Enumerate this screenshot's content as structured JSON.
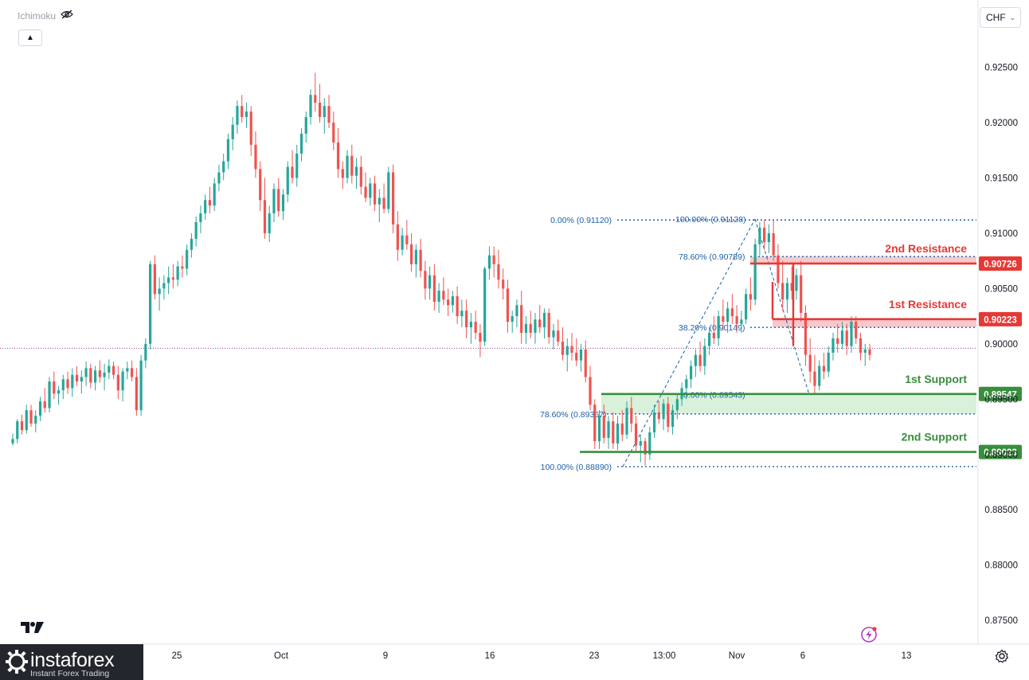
{
  "indicator": {
    "name": "Ichimoku",
    "icon": "eye-crossed-icon"
  },
  "toolbar": {
    "collapse_icon": "chevron-up-icon"
  },
  "currency": {
    "label": "CHF",
    "icon": "chevron-down-icon"
  },
  "brand": {
    "name": "instaforex",
    "tagline": "Instant Forex Trading"
  },
  "chart_data": {
    "type": "candlestick",
    "symbol_currency": "CHF",
    "ylim": [
      0.8735,
      0.9295
    ],
    "y_ticks": [
      "0.92500",
      "0.92000",
      "0.91500",
      "0.91000",
      "0.90500",
      "0.90000",
      "0.89500",
      "0.89000",
      "0.88500",
      "0.88000",
      "0.87500"
    ],
    "x_ticks": [
      "25",
      "Oct",
      "9",
      "16",
      "23",
      "13:00",
      "Nov",
      "6",
      "13"
    ],
    "current_price": 0.8996,
    "colors": {
      "up": "#26a69a",
      "down": "#ef5350",
      "resistance": "#e53935",
      "support": "#388e3c",
      "fib": "#1e5fa8",
      "zone_red": "#f7c9cb",
      "zone_green": "#d9f0da"
    },
    "levels": [
      {
        "name": "2nd Resistance",
        "value": 0.90726,
        "label": "0.90726",
        "kind": "resistance"
      },
      {
        "name": "1st Resistance",
        "value": 0.90223,
        "label": "0.90223",
        "kind": "resistance"
      },
      {
        "name": "1st Support",
        "value": 0.89547,
        "label": "0.89547",
        "kind": "support"
      },
      {
        "name": "2nd Support",
        "value": 0.89023,
        "label": "0.89023",
        "kind": "support"
      }
    ],
    "fib_labels": [
      {
        "text": "0.00% (0.91120)",
        "value": 0.9112
      },
      {
        "text": "100.00% (0.91128)",
        "value": 0.91128
      },
      {
        "text": "78.60% (0.90789)",
        "value": 0.90789
      },
      {
        "text": "38.20% (0.90149)",
        "value": 0.90149
      },
      {
        "text": "0.00% (0.89543)",
        "value": 0.89543
      },
      {
        "text": "78.60% (0.89367)",
        "value": 0.89367
      },
      {
        "text": "100.00% (0.88890)",
        "value": 0.8889
      }
    ],
    "candles": [
      [
        0.891,
        0.8919,
        0.8908,
        0.8914
      ],
      [
        0.8914,
        0.8932,
        0.891,
        0.893
      ],
      [
        0.893,
        0.8936,
        0.8918,
        0.8922
      ],
      [
        0.8922,
        0.8945,
        0.8919,
        0.894
      ],
      [
        0.894,
        0.8945,
        0.8925,
        0.8928
      ],
      [
        0.8928,
        0.894,
        0.892,
        0.8935
      ],
      [
        0.8935,
        0.8952,
        0.893,
        0.8948
      ],
      [
        0.8948,
        0.896,
        0.8938,
        0.8942
      ],
      [
        0.8942,
        0.897,
        0.8938,
        0.8966
      ],
      [
        0.8966,
        0.8975,
        0.895,
        0.8955
      ],
      [
        0.8955,
        0.8962,
        0.8945,
        0.8958
      ],
      [
        0.8958,
        0.8972,
        0.895,
        0.8968
      ],
      [
        0.8968,
        0.8975,
        0.8955,
        0.896
      ],
      [
        0.896,
        0.8978,
        0.8952,
        0.8972
      ],
      [
        0.8972,
        0.898,
        0.8962,
        0.8966
      ],
      [
        0.8966,
        0.8976,
        0.8955,
        0.897
      ],
      [
        0.897,
        0.8984,
        0.8962,
        0.8978
      ],
      [
        0.8978,
        0.8982,
        0.896,
        0.8965
      ],
      [
        0.8965,
        0.898,
        0.8958,
        0.8976
      ],
      [
        0.8976,
        0.8985,
        0.8965,
        0.897
      ],
      [
        0.897,
        0.8982,
        0.8958,
        0.8974
      ],
      [
        0.8974,
        0.8986,
        0.8968,
        0.898
      ],
      [
        0.898,
        0.8984,
        0.8968,
        0.8972
      ],
      [
        0.8972,
        0.898,
        0.895,
        0.8958
      ],
      [
        0.8958,
        0.8978,
        0.8948,
        0.8975
      ],
      [
        0.8975,
        0.8984,
        0.8968,
        0.8978
      ],
      [
        0.8978,
        0.8985,
        0.8966,
        0.897
      ],
      [
        0.897,
        0.8978,
        0.8935,
        0.894
      ],
      [
        0.894,
        0.899,
        0.8935,
        0.8985
      ],
      [
        0.8985,
        0.9005,
        0.8978,
        0.9
      ],
      [
        0.9,
        0.9075,
        0.8995,
        0.9072
      ],
      [
        0.9072,
        0.908,
        0.904,
        0.9045
      ],
      [
        0.9045,
        0.906,
        0.903,
        0.905
      ],
      [
        0.905,
        0.9062,
        0.904,
        0.9055
      ],
      [
        0.9055,
        0.907,
        0.9045,
        0.906
      ],
      [
        0.906,
        0.9072,
        0.905,
        0.9058
      ],
      [
        0.9058,
        0.9075,
        0.9052,
        0.907
      ],
      [
        0.907,
        0.908,
        0.906,
        0.9068
      ],
      [
        0.9068,
        0.909,
        0.9062,
        0.9085
      ],
      [
        0.9085,
        0.91,
        0.9078,
        0.9095
      ],
      [
        0.9095,
        0.9115,
        0.9088,
        0.911
      ],
      [
        0.911,
        0.9125,
        0.91,
        0.9118
      ],
      [
        0.9118,
        0.9135,
        0.9112,
        0.913
      ],
      [
        0.913,
        0.9142,
        0.9118,
        0.9125
      ],
      [
        0.9125,
        0.915,
        0.912,
        0.9145
      ],
      [
        0.9145,
        0.9162,
        0.9138,
        0.9155
      ],
      [
        0.9155,
        0.9172,
        0.9148,
        0.9165
      ],
      [
        0.9165,
        0.919,
        0.9158,
        0.9185
      ],
      [
        0.9185,
        0.9205,
        0.9175,
        0.9198
      ],
      [
        0.9198,
        0.922,
        0.919,
        0.9215
      ],
      [
        0.9215,
        0.9225,
        0.92,
        0.9205
      ],
      [
        0.9205,
        0.9218,
        0.9195,
        0.921
      ],
      [
        0.921,
        0.9215,
        0.917,
        0.918
      ],
      [
        0.918,
        0.9192,
        0.915,
        0.9158
      ],
      [
        0.9158,
        0.9165,
        0.912,
        0.913
      ],
      [
        0.913,
        0.915,
        0.9095,
        0.91
      ],
      [
        0.91,
        0.9125,
        0.9092,
        0.9118
      ],
      [
        0.9118,
        0.9145,
        0.911,
        0.914
      ],
      [
        0.914,
        0.915,
        0.9115,
        0.912
      ],
      [
        0.912,
        0.914,
        0.9112,
        0.9135
      ],
      [
        0.9135,
        0.9165,
        0.9128,
        0.916
      ],
      [
        0.916,
        0.9175,
        0.9145,
        0.915
      ],
      [
        0.915,
        0.918,
        0.9142,
        0.9172
      ],
      [
        0.9172,
        0.9195,
        0.9165,
        0.919
      ],
      [
        0.919,
        0.921,
        0.9182,
        0.9205
      ],
      [
        0.9205,
        0.923,
        0.9198,
        0.9225
      ],
      [
        0.9225,
        0.9245,
        0.921,
        0.9218
      ],
      [
        0.9218,
        0.9235,
        0.92,
        0.9205
      ],
      [
        0.9205,
        0.9222,
        0.919,
        0.9215
      ],
      [
        0.9215,
        0.9225,
        0.9195,
        0.92
      ],
      [
        0.92,
        0.921,
        0.9175,
        0.9182
      ],
      [
        0.9182,
        0.9195,
        0.915,
        0.9158
      ],
      [
        0.9158,
        0.9165,
        0.914,
        0.915
      ],
      [
        0.915,
        0.9175,
        0.9145,
        0.917
      ],
      [
        0.917,
        0.918,
        0.9145,
        0.9152
      ],
      [
        0.9152,
        0.9168,
        0.914,
        0.916
      ],
      [
        0.916,
        0.917,
        0.9135,
        0.9142
      ],
      [
        0.9142,
        0.9155,
        0.9128,
        0.9132
      ],
      [
        0.9132,
        0.915,
        0.9125,
        0.9145
      ],
      [
        0.9145,
        0.9152,
        0.912,
        0.9126
      ],
      [
        0.9126,
        0.914,
        0.911,
        0.9132
      ],
      [
        0.9132,
        0.9145,
        0.9118,
        0.9122
      ],
      [
        0.9122,
        0.916,
        0.9118,
        0.9155
      ],
      [
        0.9155,
        0.9162,
        0.91,
        0.9108
      ],
      [
        0.9108,
        0.912,
        0.9075,
        0.9085
      ],
      [
        0.9085,
        0.9105,
        0.908,
        0.9098
      ],
      [
        0.9098,
        0.9112,
        0.9085,
        0.909
      ],
      [
        0.909,
        0.91,
        0.9065,
        0.9072
      ],
      [
        0.9072,
        0.909,
        0.906,
        0.9085
      ],
      [
        0.9085,
        0.9095,
        0.906,
        0.9066
      ],
      [
        0.9066,
        0.9075,
        0.904,
        0.905
      ],
      [
        0.905,
        0.907,
        0.904,
        0.9062
      ],
      [
        0.9062,
        0.9072,
        0.903,
        0.9038
      ],
      [
        0.9038,
        0.9055,
        0.9028,
        0.9048
      ],
      [
        0.9048,
        0.906,
        0.9035,
        0.904
      ],
      [
        0.904,
        0.905,
        0.9025,
        0.9035
      ],
      [
        0.9035,
        0.9048,
        0.9028,
        0.9043
      ],
      [
        0.9043,
        0.9052,
        0.9018,
        0.9025
      ],
      [
        0.9025,
        0.904,
        0.9015,
        0.903
      ],
      [
        0.903,
        0.904,
        0.9005,
        0.9015
      ],
      [
        0.9015,
        0.9028,
        0.9,
        0.902
      ],
      [
        0.902,
        0.903,
        0.9004,
        0.901
      ],
      [
        0.901,
        0.9018,
        0.8988,
        0.9002
      ],
      [
        0.9002,
        0.907,
        0.8998,
        0.9068
      ],
      [
        0.9068,
        0.9088,
        0.9058,
        0.908
      ],
      [
        0.908,
        0.9088,
        0.906,
        0.9072
      ],
      [
        0.9072,
        0.9085,
        0.905,
        0.9058
      ],
      [
        0.9058,
        0.9068,
        0.904,
        0.905
      ],
      [
        0.905,
        0.9058,
        0.901,
        0.902
      ],
      [
        0.902,
        0.903,
        0.901,
        0.9025
      ],
      [
        0.9025,
        0.904,
        0.9015,
        0.9035
      ],
      [
        0.9035,
        0.9048,
        0.9,
        0.901
      ],
      [
        0.901,
        0.9025,
        0.9,
        0.9018
      ],
      [
        0.9018,
        0.903,
        0.9005,
        0.901
      ],
      [
        0.901,
        0.9028,
        0.9,
        0.9022
      ],
      [
        0.9022,
        0.9035,
        0.901,
        0.9015
      ],
      [
        0.9015,
        0.9032,
        0.9005,
        0.9028
      ],
      [
        0.9028,
        0.9032,
        0.9,
        0.9006
      ],
      [
        0.9006,
        0.9018,
        0.8995,
        0.9012
      ],
      [
        0.9012,
        0.9022,
        0.8998,
        0.9002
      ],
      [
        0.9002,
        0.9015,
        0.8985,
        0.899
      ],
      [
        0.899,
        0.9005,
        0.8975,
        0.8998
      ],
      [
        0.8998,
        0.901,
        0.8985,
        0.8992
      ],
      [
        0.8992,
        0.9005,
        0.898,
        0.8985
      ],
      [
        0.8985,
        0.9,
        0.8975,
        0.8995
      ],
      [
        0.8995,
        0.9003,
        0.8965,
        0.897
      ],
      [
        0.897,
        0.898,
        0.894,
        0.8945
      ],
      [
        0.8945,
        0.895,
        0.8905,
        0.8912
      ],
      [
        0.8912,
        0.894,
        0.8905,
        0.8935
      ],
      [
        0.8935,
        0.8945,
        0.891,
        0.8915
      ],
      [
        0.8915,
        0.8935,
        0.8905,
        0.893
      ],
      [
        0.893,
        0.8938,
        0.8905,
        0.891
      ],
      [
        0.891,
        0.8935,
        0.8904,
        0.8928
      ],
      [
        0.8928,
        0.894,
        0.8912,
        0.8918
      ],
      [
        0.8918,
        0.8948,
        0.8914,
        0.8942
      ],
      [
        0.8942,
        0.8952,
        0.892,
        0.8928
      ],
      [
        0.8928,
        0.8935,
        0.8902,
        0.8908
      ],
      [
        0.8908,
        0.8918,
        0.8893,
        0.8912
      ],
      [
        0.8912,
        0.8915,
        0.889,
        0.89
      ],
      [
        0.89,
        0.8925,
        0.8895,
        0.892
      ],
      [
        0.892,
        0.8945,
        0.8915,
        0.8938
      ],
      [
        0.8938,
        0.8948,
        0.8928,
        0.8932
      ],
      [
        0.8932,
        0.895,
        0.8922,
        0.8946
      ],
      [
        0.8946,
        0.8952,
        0.892,
        0.8925
      ],
      [
        0.8925,
        0.8945,
        0.8918,
        0.894
      ],
      [
        0.894,
        0.8955,
        0.8932,
        0.895
      ],
      [
        0.895,
        0.8965,
        0.8944,
        0.896
      ],
      [
        0.896,
        0.8972,
        0.895,
        0.8968
      ],
      [
        0.8968,
        0.8985,
        0.896,
        0.898
      ],
      [
        0.898,
        0.8995,
        0.897,
        0.899
      ],
      [
        0.899,
        0.9002,
        0.8975,
        0.898
      ],
      [
        0.898,
        0.9005,
        0.8972,
        0.8998
      ],
      [
        0.8998,
        0.9015,
        0.899,
        0.901
      ],
      [
        0.901,
        0.9025,
        0.9,
        0.9005
      ],
      [
        0.9005,
        0.903,
        0.8998,
        0.9025
      ],
      [
        0.9025,
        0.904,
        0.9012,
        0.902
      ],
      [
        0.902,
        0.9038,
        0.901,
        0.9032
      ],
      [
        0.9032,
        0.9045,
        0.9018,
        0.9025
      ],
      [
        0.9025,
        0.9035,
        0.901,
        0.9018
      ],
      [
        0.9018,
        0.903,
        0.901,
        0.9022
      ],
      [
        0.9022,
        0.905,
        0.9018,
        0.9045
      ],
      [
        0.9045,
        0.906,
        0.903,
        0.904
      ],
      [
        0.904,
        0.9095,
        0.9035,
        0.909
      ],
      [
        0.909,
        0.911,
        0.908,
        0.9105
      ],
      [
        0.9105,
        0.9112,
        0.9085,
        0.9092
      ],
      [
        0.9092,
        0.9108,
        0.9082,
        0.91
      ],
      [
        0.91,
        0.9112,
        0.9075,
        0.908
      ],
      [
        0.908,
        0.909,
        0.905,
        0.9055
      ],
      [
        0.9055,
        0.9075,
        0.903,
        0.904
      ],
      [
        0.904,
        0.906,
        0.9028,
        0.9055
      ],
      [
        0.9055,
        0.907,
        0.904,
        0.9048
      ],
      [
        0.9048,
        0.9068,
        0.904,
        0.9062
      ],
      [
        0.9062,
        0.9075,
        0.902,
        0.9028
      ],
      [
        0.9028,
        0.9035,
        0.898,
        0.899
      ],
      [
        0.899,
        0.9005,
        0.8965,
        0.8975
      ],
      [
        0.8975,
        0.899,
        0.8955,
        0.8962
      ],
      [
        0.8962,
        0.8985,
        0.8958,
        0.898
      ],
      [
        0.898,
        0.8992,
        0.8968,
        0.8975
      ],
      [
        0.8975,
        0.8998,
        0.897,
        0.8992
      ],
      [
        0.8992,
        0.901,
        0.8985,
        0.9005
      ],
      [
        0.9005,
        0.9018,
        0.8992,
        0.9
      ],
      [
        0.9,
        0.902,
        0.8995,
        0.9012
      ],
      [
        0.9012,
        0.9018,
        0.899,
        0.8998
      ],
      [
        0.8998,
        0.9025,
        0.8992,
        0.902
      ],
      [
        0.902,
        0.9025,
        0.9,
        0.9005
      ],
      [
        0.9005,
        0.901,
        0.8985,
        0.8992
      ],
      [
        0.8992,
        0.9,
        0.898,
        0.8995
      ],
      [
        0.8995,
        0.9,
        0.8985,
        0.899
      ]
    ]
  }
}
